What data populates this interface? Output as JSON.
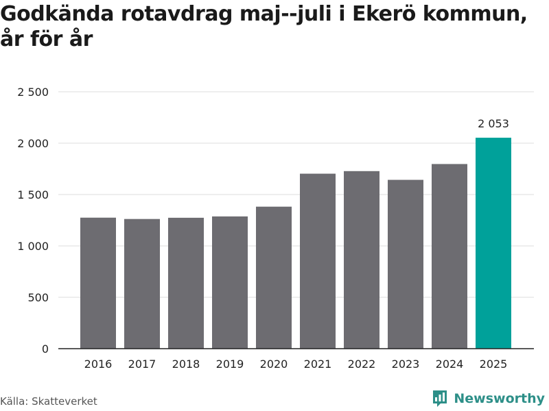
{
  "title": "Godkända rotavdrag maj--juli i Ekerö kommun, år för år",
  "source": "Källa: Skatteverket",
  "brand": {
    "name": "Newsworthy",
    "icon": "bar-chart-logo-icon",
    "color": "#2d8f88"
  },
  "chart_data": {
    "type": "bar",
    "title": "Godkända rotavdrag maj--juli i Ekerö kommun, år för år",
    "xlabel": "",
    "ylabel": "",
    "categories": [
      "2016",
      "2017",
      "2018",
      "2019",
      "2020",
      "2021",
      "2022",
      "2023",
      "2024",
      "2025"
    ],
    "values": [
      1275,
      1262,
      1274,
      1287,
      1382,
      1703,
      1728,
      1643,
      1797,
      2053
    ],
    "ylim": [
      0,
      2500
    ],
    "yticks": [
      0,
      500,
      1000,
      1500,
      2000,
      2500
    ],
    "ytick_labels": [
      "0",
      "500",
      "1 000",
      "1 500",
      "2 000",
      "2 500"
    ],
    "highlight_index": 9,
    "value_labels": [
      {
        "index": 9,
        "text": "2 053"
      }
    ],
    "colors": {
      "bar": "#6d6c71",
      "highlight": "#00a19a",
      "grid": "#dddddd",
      "axis": "#222222"
    },
    "grid": true,
    "legend": "none"
  }
}
